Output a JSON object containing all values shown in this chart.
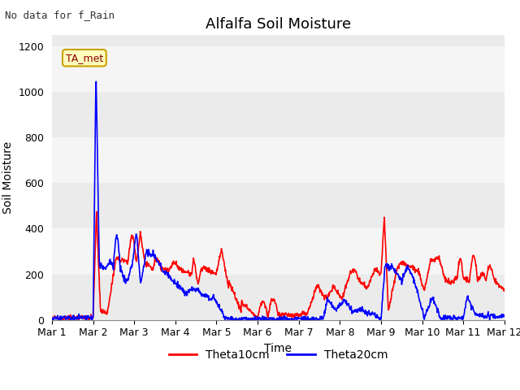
{
  "title": "Alfalfa Soil Moisture",
  "top_left_text": "No data for f_Rain",
  "label_box_text": "TA_met",
  "ylabel": "Soil Moisture",
  "xlabel": "Time",
  "xlim": [
    0,
    11
  ],
  "ylim": [
    0,
    1250
  ],
  "yticks": [
    0,
    200,
    400,
    600,
    800,
    1000,
    1200
  ],
  "xtick_labels": [
    "Mar 1",
    "Mar 2",
    "Mar 3",
    "Mar 4",
    "Mar 5",
    "Mar 6",
    "Mar 7",
    "Mar 8",
    "Mar 9",
    "Mar 10",
    "Mar 11",
    "Mar 12"
  ],
  "band_colors": [
    "#ebebeb",
    "#f5f5f5"
  ],
  "fig_background": "#ffffff",
  "line1_color": "#ff0000",
  "line2_color": "#0000ff",
  "legend_labels": [
    "Theta10cm",
    "Theta20cm"
  ],
  "title_fontsize": 13,
  "axis_label_fontsize": 10,
  "tick_fontsize": 9
}
